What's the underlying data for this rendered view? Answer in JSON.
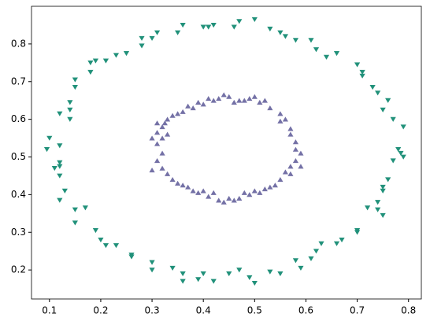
{
  "chart_data": {
    "type": "scatter",
    "xlim": [
      0.065,
      0.825
    ],
    "ylim": [
      0.123,
      0.9
    ],
    "xticks": [
      0.1,
      0.2,
      0.3,
      0.4,
      0.5,
      0.6,
      0.7,
      0.8
    ],
    "yticks": [
      0.2,
      0.3,
      0.4,
      0.5,
      0.6,
      0.7,
      0.8
    ],
    "series": [
      {
        "color": "#21917a",
        "marker": "triangle_down",
        "x": [
          0.5,
          0.47,
          0.46,
          0.4,
          0.41,
          0.42,
          0.36,
          0.35,
          0.31,
          0.3,
          0.28,
          0.28,
          0.25,
          0.23,
          0.21,
          0.19,
          0.18,
          0.18,
          0.15,
          0.15,
          0.14,
          0.14,
          0.12,
          0.14,
          0.1,
          0.12,
          0.095,
          0.12,
          0.12,
          0.11,
          0.12,
          0.13,
          0.12,
          0.15,
          0.17,
          0.15,
          0.19,
          0.2,
          0.21,
          0.23,
          0.26,
          0.26,
          0.3,
          0.3,
          0.34,
          0.36,
          0.36,
          0.4,
          0.39,
          0.42,
          0.45,
          0.47,
          0.49,
          0.5,
          0.53,
          0.55,
          0.58,
          0.59,
          0.61,
          0.62,
          0.63,
          0.66,
          0.67,
          0.7,
          0.7,
          0.72,
          0.74,
          0.75,
          0.74,
          0.75,
          0.75,
          0.76,
          0.77,
          0.78,
          0.785,
          0.79,
          0.79,
          0.77,
          0.75,
          0.76,
          0.74,
          0.73,
          0.71,
          0.71,
          0.7,
          0.66,
          0.64,
          0.62,
          0.61,
          0.58,
          0.56,
          0.55,
          0.53
        ],
        "y": [
          0.865,
          0.86,
          0.845,
          0.845,
          0.845,
          0.85,
          0.85,
          0.83,
          0.83,
          0.815,
          0.815,
          0.795,
          0.775,
          0.77,
          0.755,
          0.755,
          0.75,
          0.725,
          0.705,
          0.685,
          0.645,
          0.625,
          0.615,
          0.6,
          0.55,
          0.53,
          0.52,
          0.485,
          0.475,
          0.47,
          0.45,
          0.41,
          0.385,
          0.36,
          0.365,
          0.325,
          0.305,
          0.28,
          0.265,
          0.265,
          0.24,
          0.235,
          0.22,
          0.2,
          0.205,
          0.19,
          0.17,
          0.19,
          0.175,
          0.17,
          0.19,
          0.2,
          0.18,
          0.165,
          0.195,
          0.19,
          0.225,
          0.205,
          0.23,
          0.25,
          0.27,
          0.27,
          0.28,
          0.305,
          0.3,
          0.365,
          0.36,
          0.345,
          0.38,
          0.42,
          0.41,
          0.44,
          0.49,
          0.52,
          0.51,
          0.5,
          0.58,
          0.6,
          0.625,
          0.65,
          0.67,
          0.685,
          0.715,
          0.725,
          0.745,
          0.775,
          0.765,
          0.785,
          0.81,
          0.81,
          0.82,
          0.83,
          0.84
        ]
      },
      {
        "color": "#7471a6",
        "marker": "triangle_up",
        "x": [
          0.3,
          0.31,
          0.32,
          0.33,
          0.34,
          0.35,
          0.36,
          0.37,
          0.38,
          0.39,
          0.4,
          0.41,
          0.42,
          0.43,
          0.44,
          0.45,
          0.46,
          0.47,
          0.48,
          0.49,
          0.5,
          0.51,
          0.52,
          0.53,
          0.55,
          0.55,
          0.56,
          0.57,
          0.57,
          0.58,
          0.58,
          0.59,
          0.58,
          0.59,
          0.57,
          0.56,
          0.57,
          0.55,
          0.54,
          0.53,
          0.52,
          0.51,
          0.5,
          0.49,
          0.48,
          0.47,
          0.46,
          0.45,
          0.44,
          0.43,
          0.42,
          0.41,
          0.4,
          0.39,
          0.38,
          0.37,
          0.36,
          0.35,
          0.34,
          0.33,
          0.32,
          0.3,
          0.31,
          0.32,
          0.31,
          0.32,
          0.33,
          0.31,
          0.325
        ],
        "y": [
          0.55,
          0.59,
          0.58,
          0.6,
          0.61,
          0.615,
          0.62,
          0.635,
          0.63,
          0.645,
          0.64,
          0.655,
          0.65,
          0.655,
          0.665,
          0.66,
          0.645,
          0.65,
          0.65,
          0.655,
          0.66,
          0.645,
          0.65,
          0.63,
          0.615,
          0.595,
          0.6,
          0.575,
          0.56,
          0.54,
          0.52,
          0.51,
          0.49,
          0.475,
          0.475,
          0.46,
          0.455,
          0.44,
          0.425,
          0.42,
          0.415,
          0.405,
          0.41,
          0.4,
          0.405,
          0.39,
          0.385,
          0.39,
          0.38,
          0.385,
          0.405,
          0.395,
          0.41,
          0.405,
          0.41,
          0.42,
          0.425,
          0.43,
          0.44,
          0.455,
          0.47,
          0.465,
          0.49,
          0.51,
          0.535,
          0.55,
          0.56,
          0.565,
          0.59
        ]
      }
    ]
  }
}
